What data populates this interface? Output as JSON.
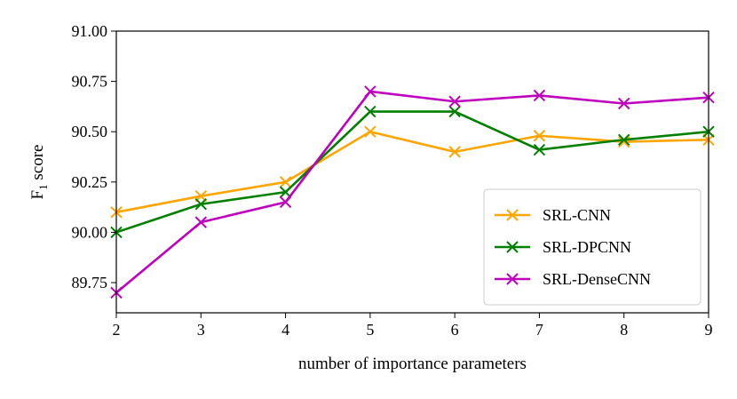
{
  "chart_data": {
    "type": "line",
    "title": "",
    "xlabel": "number of importance parameters",
    "ylabel_main": "F",
    "ylabel_sub": "1",
    "ylabel_rest": " score",
    "x": [
      2,
      3,
      4,
      5,
      6,
      7,
      8,
      9
    ],
    "xlim": [
      2,
      9
    ],
    "ylim": [
      89.6,
      91.0
    ],
    "xticks": [
      2,
      3,
      4,
      5,
      6,
      7,
      8,
      9
    ],
    "xtick_labels": [
      "2",
      "3",
      "4",
      "5",
      "6",
      "7",
      "8",
      "9"
    ],
    "yticks": [
      89.75,
      90.0,
      90.25,
      90.5,
      90.75,
      91.0
    ],
    "ytick_labels": [
      "89.75",
      "90.00",
      "90.25",
      "90.50",
      "90.75",
      "91.00"
    ],
    "grid": false,
    "legend_position": "lower-right",
    "marker": "x",
    "series": [
      {
        "name": "SRL-CNN",
        "color": "#FFA500",
        "values": [
          90.1,
          90.18,
          90.25,
          90.5,
          90.4,
          90.48,
          90.45,
          90.46
        ]
      },
      {
        "name": "SRL-DPCNN",
        "color": "#008000",
        "values": [
          90.0,
          90.14,
          90.2,
          90.6,
          90.6,
          90.41,
          90.46,
          90.5
        ]
      },
      {
        "name": "SRL-DenseCNN",
        "color": "#BF00BF",
        "values": [
          89.7,
          90.05,
          90.15,
          90.7,
          90.65,
          90.68,
          90.64,
          90.67
        ]
      }
    ]
  }
}
